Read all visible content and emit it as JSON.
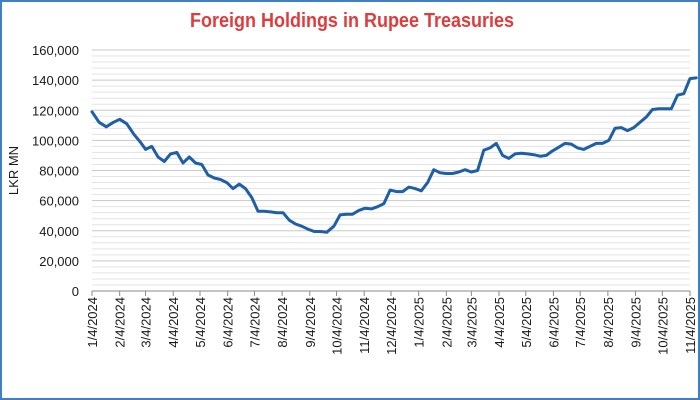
{
  "chart_data": {
    "type": "line",
    "title": "Foreign Holdings in Rupee Treasuries",
    "xlabel": "",
    "ylabel": "LKR MN",
    "ylim": [
      0,
      160000
    ],
    "yticks": [
      "0",
      "20,000",
      "40,000",
      "60,000",
      "80,000",
      "100,000",
      "120,000",
      "140,000",
      "160,000"
    ],
    "xticks": [
      "1/4/2024",
      "2/4/2024",
      "3/4/2024",
      "4/4/2024",
      "5/4/2024",
      "6/4/2024",
      "7/4/2024",
      "8/4/2024",
      "9/4/2024",
      "10/4/2024",
      "11/4/2024",
      "12/4/2024",
      "1/4/2025",
      "2/4/2025",
      "3/4/2025",
      "4/4/2025",
      "5/4/2025",
      "6/4/2025",
      "7/4/2025",
      "8/4/2025",
      "9/4/2025",
      "10/4/2025",
      "11/4/2025"
    ],
    "grid": true,
    "legend": "none",
    "line_color": "#1f5fa6",
    "series": [
      {
        "values": [
          [
            "2024-01-04",
            119000
          ],
          [
            "2024-01-12",
            112000
          ],
          [
            "2024-01-20",
            109000
          ],
          [
            "2024-01-28",
            112000
          ],
          [
            "2024-02-04",
            114000
          ],
          [
            "2024-02-12",
            111000
          ],
          [
            "2024-02-20",
            104000
          ],
          [
            "2024-02-27",
            99000
          ],
          [
            "2024-03-04",
            94000
          ],
          [
            "2024-03-11",
            96000
          ],
          [
            "2024-03-18",
            89000
          ],
          [
            "2024-03-25",
            86000
          ],
          [
            "2024-04-01",
            91000
          ],
          [
            "2024-04-08",
            92000
          ],
          [
            "2024-04-15",
            85000
          ],
          [
            "2024-04-22",
            89000
          ],
          [
            "2024-04-29",
            85000
          ],
          [
            "2024-05-06",
            84000
          ],
          [
            "2024-05-13",
            77000
          ],
          [
            "2024-05-20",
            75000
          ],
          [
            "2024-05-27",
            74000
          ],
          [
            "2024-06-03",
            72000
          ],
          [
            "2024-06-10",
            68000
          ],
          [
            "2024-06-17",
            71000
          ],
          [
            "2024-06-24",
            68000
          ],
          [
            "2024-07-01",
            62000
          ],
          [
            "2024-07-08",
            53000
          ],
          [
            "2024-07-15",
            53000
          ],
          [
            "2024-07-22",
            52500
          ],
          [
            "2024-07-29",
            52000
          ],
          [
            "2024-08-05",
            52000
          ],
          [
            "2024-08-12",
            47000
          ],
          [
            "2024-08-19",
            44500
          ],
          [
            "2024-08-26",
            43000
          ],
          [
            "2024-09-02",
            41000
          ],
          [
            "2024-09-09",
            39500
          ],
          [
            "2024-09-16",
            39500
          ],
          [
            "2024-09-23",
            39000
          ],
          [
            "2024-10-01",
            43000
          ],
          [
            "2024-10-08",
            50500
          ],
          [
            "2024-10-15",
            51000
          ],
          [
            "2024-10-22",
            51000
          ],
          [
            "2024-10-29",
            53500
          ],
          [
            "2024-11-05",
            55000
          ],
          [
            "2024-11-12",
            54500
          ],
          [
            "2024-11-19",
            56000
          ],
          [
            "2024-11-26",
            58000
          ],
          [
            "2024-12-03",
            67000
          ],
          [
            "2024-12-10",
            66000
          ],
          [
            "2024-12-17",
            66000
          ],
          [
            "2024-12-24",
            69000
          ],
          [
            "2024-12-31",
            68000
          ],
          [
            "2025-01-07",
            66500
          ],
          [
            "2025-01-14",
            72000
          ],
          [
            "2025-01-21",
            80500
          ],
          [
            "2025-01-28",
            78500
          ],
          [
            "2025-02-04",
            78000
          ],
          [
            "2025-02-11",
            78000
          ],
          [
            "2025-02-18",
            79000
          ],
          [
            "2025-02-25",
            80500
          ],
          [
            "2025-03-04",
            79000
          ],
          [
            "2025-03-11",
            80000
          ],
          [
            "2025-03-18",
            93500
          ],
          [
            "2025-03-25",
            95000
          ],
          [
            "2025-04-01",
            98000
          ],
          [
            "2025-04-08",
            90000
          ],
          [
            "2025-04-15",
            88000
          ],
          [
            "2025-04-22",
            91000
          ],
          [
            "2025-04-29",
            91500
          ],
          [
            "2025-05-06",
            91000
          ],
          [
            "2025-05-13",
            90500
          ],
          [
            "2025-05-20",
            89500
          ],
          [
            "2025-05-27",
            90000
          ],
          [
            "2025-06-03",
            93000
          ],
          [
            "2025-06-10",
            95500
          ],
          [
            "2025-06-17",
            98000
          ],
          [
            "2025-06-24",
            97500
          ],
          [
            "2025-07-01",
            95000
          ],
          [
            "2025-07-08",
            94000
          ],
          [
            "2025-07-15",
            96000
          ],
          [
            "2025-07-22",
            98000
          ],
          [
            "2025-07-29",
            98000
          ],
          [
            "2025-08-05",
            100000
          ],
          [
            "2025-08-12",
            108000
          ],
          [
            "2025-08-19",
            108500
          ],
          [
            "2025-08-26",
            106500
          ],
          [
            "2025-09-02",
            108500
          ],
          [
            "2025-09-09",
            112000
          ],
          [
            "2025-09-16",
            115500
          ],
          [
            "2025-09-23",
            120500
          ],
          [
            "2025-09-30",
            121000
          ],
          [
            "2025-10-07",
            121000
          ],
          [
            "2025-10-14",
            121000
          ],
          [
            "2025-10-21",
            130000
          ],
          [
            "2025-10-28",
            131000
          ],
          [
            "2025-11-04",
            141000
          ],
          [
            "2025-11-11",
            141500
          ]
        ]
      }
    ]
  }
}
